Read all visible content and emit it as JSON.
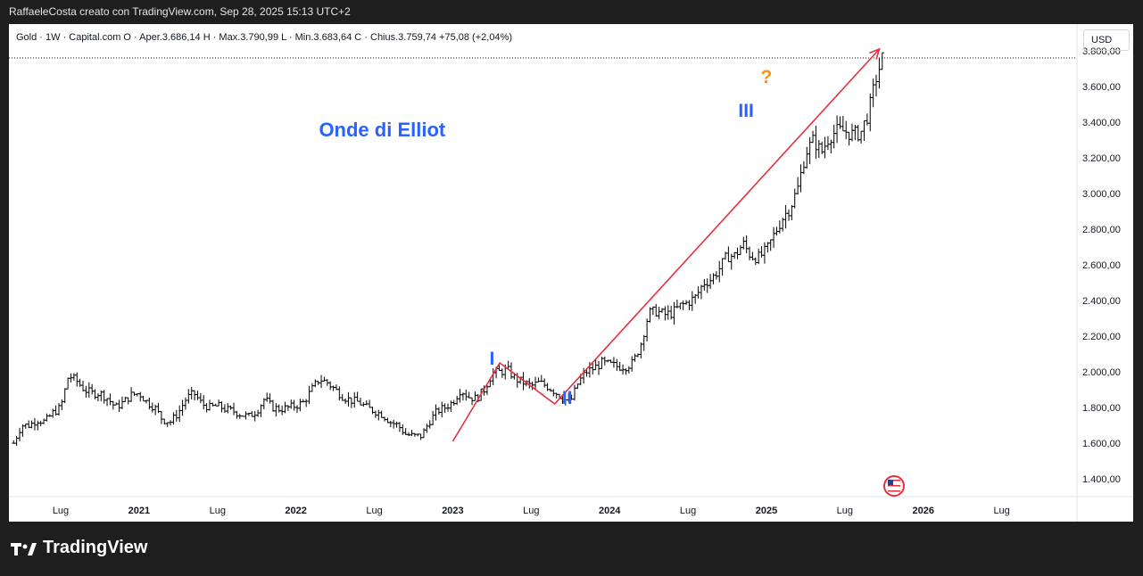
{
  "caption": "RaffaeleCosta creato con TradingView.com, Sep 28, 2025 15:13 UTC+2",
  "legend": "Gold · 1W · Capital.com  O · Aper.3.686,14  H · Max.3.790,99  L · Min.3.683,64  C · Chius.3.759,74  +75,08 (+2,04%)",
  "currency": "USD",
  "footer": {
    "brand": "TradingView",
    "logo_icon": "tradingview-logo-icon"
  },
  "colors": {
    "trend_line": "#e5313d",
    "wave_label": "#2962ff",
    "question": "#f7931a",
    "candle": "#000000"
  },
  "chart_data": {
    "type": "ohlc-bar",
    "symbol": "Gold",
    "interval": "1W",
    "source": "Capital.com",
    "ylim": [
      1300,
      3950
    ],
    "ytick_labels": [
      "1.400,00",
      "1.600,00",
      "1.800,00",
      "2.000,00",
      "2.200,00",
      "2.400,00",
      "2.600,00",
      "2.800,00",
      "3.000,00",
      "3.200,00",
      "3.400,00",
      "3.600,00",
      "3.800,00"
    ],
    "ytick_values": [
      1400,
      1600,
      1800,
      2000,
      2200,
      2400,
      2600,
      2800,
      3000,
      3200,
      3400,
      3600,
      3800
    ],
    "xtick_labels": [
      "Lug",
      "2021",
      "Lug",
      "2022",
      "Lug",
      "2023",
      "Lug",
      "2024",
      "Lug",
      "2025",
      "Lug",
      "2026",
      "Lug"
    ],
    "xtick_values": [
      2020.5,
      2021.0,
      2021.5,
      2022.0,
      2022.5,
      2023.0,
      2023.5,
      2024.0,
      2024.5,
      2025.0,
      2025.5,
      2026.0,
      2026.5
    ],
    "xlim": [
      2020.17,
      2026.98
    ],
    "current_price": 3759.74,
    "close_series": {
      "t": [
        2020.2,
        2020.25,
        2020.3,
        2020.35,
        2020.4,
        2020.45,
        2020.5,
        2020.55,
        2020.6,
        2020.65,
        2020.7,
        2020.75,
        2020.8,
        2020.85,
        2020.9,
        2020.95,
        2021.0,
        2021.05,
        2021.1,
        2021.15,
        2021.2,
        2021.25,
        2021.3,
        2021.35,
        2021.4,
        2021.45,
        2021.5,
        2021.55,
        2021.6,
        2021.65,
        2021.7,
        2021.75,
        2021.8,
        2021.85,
        2021.9,
        2021.95,
        2022.0,
        2022.05,
        2022.1,
        2022.15,
        2022.2,
        2022.25,
        2022.3,
        2022.35,
        2022.4,
        2022.45,
        2022.5,
        2022.55,
        2022.6,
        2022.65,
        2022.7,
        2022.75,
        2022.8,
        2022.85,
        2022.9,
        2022.95,
        2023.0,
        2023.05,
        2023.1,
        2023.15,
        2023.2,
        2023.25,
        2023.3,
        2023.35,
        2023.4,
        2023.45,
        2023.5,
        2023.55,
        2023.6,
        2023.65,
        2023.7,
        2023.75,
        2023.8,
        2023.85,
        2023.9,
        2023.95,
        2024.0,
        2024.05,
        2024.1,
        2024.15,
        2024.2,
        2024.25,
        2024.3,
        2024.35,
        2024.4,
        2024.45,
        2024.5,
        2024.55,
        2024.6,
        2024.65,
        2024.7,
        2024.75,
        2024.8,
        2024.85,
        2024.9,
        2024.95,
        2025.0,
        2025.05,
        2025.1,
        2025.15,
        2025.2,
        2025.25,
        2025.3,
        2025.35,
        2025.4,
        2025.45,
        2025.5,
        2025.55,
        2025.6,
        2025.65,
        2025.7,
        2025.74
      ],
      "close": [
        1600,
        1700,
        1700,
        1730,
        1720,
        1770,
        1800,
        1980,
        1950,
        1900,
        1880,
        1880,
        1850,
        1800,
        1830,
        1870,
        1880,
        1830,
        1800,
        1730,
        1720,
        1770,
        1850,
        1880,
        1820,
        1800,
        1810,
        1790,
        1780,
        1760,
        1750,
        1780,
        1850,
        1800,
        1790,
        1800,
        1810,
        1830,
        1900,
        1960,
        1940,
        1900,
        1860,
        1840,
        1830,
        1800,
        1780,
        1760,
        1720,
        1700,
        1650,
        1640,
        1640,
        1720,
        1780,
        1800,
        1830,
        1900,
        1860,
        1850,
        1900,
        1990,
        2000,
        2010,
        1960,
        1940,
        1920,
        1940,
        1920,
        1890,
        1850,
        1830,
        1940,
        2000,
        2020,
        2050,
        2040,
        2030,
        2030,
        2050,
        2160,
        2330,
        2340,
        2320,
        2330,
        2370,
        2390,
        2420,
        2500,
        2520,
        2580,
        2650,
        2650,
        2720,
        2650,
        2640,
        2680,
        2770,
        2860,
        2920,
        3030,
        3230,
        3300,
        3230,
        3320,
        3350,
        3350,
        3330,
        3340,
        3450,
        3650,
        3760
      ]
    },
    "annotations": [
      {
        "text": "Onde di Elliot",
        "x": 2022.55,
        "y": 3320
      },
      {
        "text": "I",
        "x": 2023.25,
        "y": 2040
      },
      {
        "text": "II",
        "x": 2023.73,
        "y": 1820
      },
      {
        "text": "III",
        "x": 2024.87,
        "y": 3430
      },
      {
        "text": "?",
        "x": 2025.0,
        "y": 3620
      }
    ],
    "trend_line": [
      [
        2023.0,
        1610
      ],
      [
        2023.3,
        2050
      ],
      [
        2023.65,
        1820
      ],
      [
        2025.72,
        3810
      ]
    ]
  }
}
